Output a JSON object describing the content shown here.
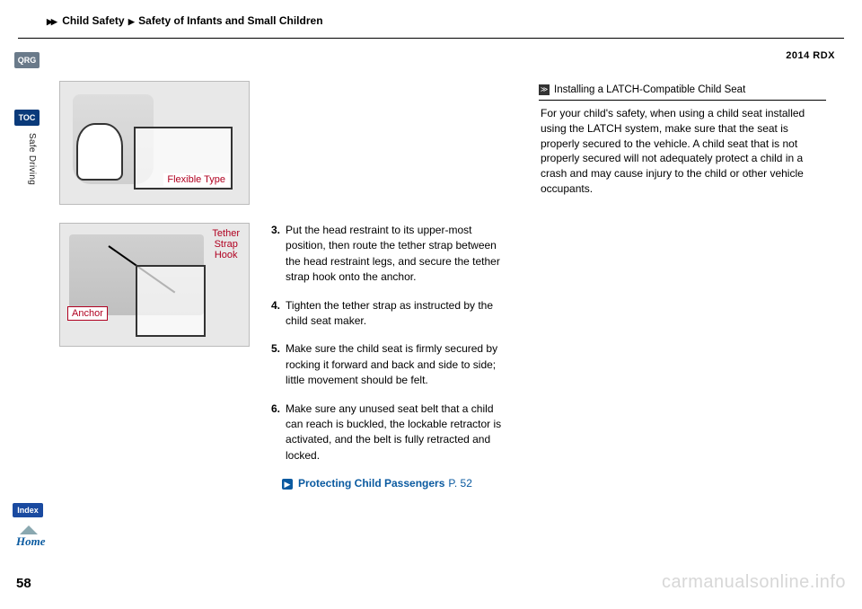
{
  "nav": {
    "qrg": "QRG",
    "toc": "TOC",
    "section": "Safe Driving",
    "index": "Index",
    "home": "Home"
  },
  "breadcrumb": {
    "level1": "Child Safety",
    "level2": "Safety of Infants and Small Children"
  },
  "model": "2014 RDX",
  "page_number": "58",
  "figures": {
    "fig1_label": "Flexible Type",
    "fig2_tether": "Tether\nStrap\nHook",
    "fig2_anchor": "Anchor"
  },
  "steps": [
    {
      "n": "3.",
      "text": "Put the head restraint to its upper-most position, then route the tether strap between the head restraint legs, and secure the tether strap hook onto the anchor."
    },
    {
      "n": "4.",
      "text": "Tighten the tether strap as instructed by the child seat maker."
    },
    {
      "n": "5.",
      "text": "Make sure the child seat is firmly secured by rocking it forward and back and side to side; little movement should be felt."
    },
    {
      "n": "6.",
      "text": "Make sure any unused seat belt that a child can reach is buckled, the lockable retractor is activated, and the belt is fully retracted and locked."
    }
  ],
  "xref": {
    "label": "Protecting Child Passengers",
    "page": "P. 52"
  },
  "note": {
    "title": "Installing a LATCH-Compatible Child Seat",
    "body": "For your child's safety, when using a child seat installed using the LATCH system, make sure that the seat is properly secured to the vehicle. A child seat that is not properly secured will not adequately protect a child in a crash and may cause injury to the child or other vehicle occupants."
  },
  "watermark": "carmanualsonline.info",
  "colors": {
    "accent_blue": "#0a5aa0",
    "label_red": "#b00020",
    "nav_qrg_bg": "#6a7a8a",
    "nav_toc_bg": "#0a3a7a",
    "nav_index_bg": "#1a4aa0",
    "figure_bg": "#e8e8e8",
    "watermark": "#d7d7d7"
  }
}
